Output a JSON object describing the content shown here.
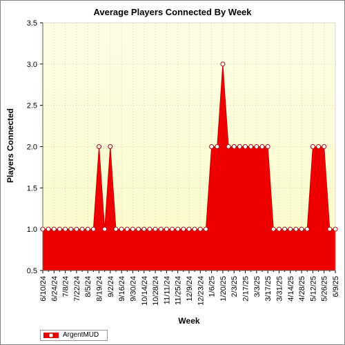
{
  "chart_data": {
    "type": "area",
    "title": "Average Players Connected By Week",
    "xlabel": "Week",
    "ylabel": "Players Connected",
    "ylim": [
      0.5,
      3.5
    ],
    "yticks": [
      "0.5",
      "1.0",
      "1.5",
      "2.0",
      "2.5",
      "3.0",
      "3.5"
    ],
    "grid": true,
    "legend_position": "bottom-left",
    "colors": {
      "area": "#ee0000",
      "line": "#cc0000",
      "marker_fill": "#ffffff",
      "marker_edge": "#aa0000",
      "plot_bg_top": "#fdfde6",
      "plot_bg_bottom": "#fafac8",
      "grid": "#c8c8b4"
    },
    "x": [
      "6/10/24",
      "6/17/24",
      "6/24/24",
      "7/1/24",
      "7/8/24",
      "7/15/24",
      "7/22/24",
      "7/29/24",
      "8/5/24",
      "8/12/24",
      "8/19/24",
      "8/26/24",
      "9/2/24",
      "9/9/24",
      "9/16/24",
      "9/23/24",
      "9/30/24",
      "10/7/24",
      "10/14/24",
      "10/21/24",
      "10/28/24",
      "11/4/24",
      "11/11/24",
      "11/18/24",
      "11/25/24",
      "12/2/24",
      "12/9/24",
      "12/16/24",
      "12/23/24",
      "12/30/24",
      "1/6/25",
      "1/13/25",
      "1/20/25",
      "1/27/25",
      "2/3/25",
      "2/10/25",
      "2/17/25",
      "2/24/25",
      "3/3/25",
      "3/10/25",
      "3/17/25",
      "3/24/25",
      "3/31/25",
      "4/7/25",
      "4/14/25",
      "4/21/25",
      "4/28/25",
      "5/5/25",
      "5/12/25",
      "5/19/25",
      "5/26/25",
      "6/2/25",
      "6/9/25"
    ],
    "xtick_labels": [
      "6/10/24",
      "6/24/24",
      "7/8/24",
      "7/22/24",
      "8/5/24",
      "8/19/24",
      "9/2/24",
      "9/16/24",
      "9/30/24",
      "10/14/24",
      "10/28/24",
      "11/11/24",
      "11/25/24",
      "12/9/24",
      "12/23/24",
      "1/6/25",
      "1/20/25",
      "2/3/25",
      "2/17/25",
      "3/3/25",
      "3/17/25",
      "3/31/25",
      "4/14/25",
      "4/28/25",
      "5/12/25",
      "5/26/25",
      "6/9/25"
    ],
    "series": [
      {
        "name": "ArgentMUD",
        "values": [
          1,
          1,
          1,
          1,
          1,
          1,
          1,
          1,
          1,
          1,
          2,
          1,
          2,
          1,
          1,
          1,
          1,
          1,
          1,
          1,
          1,
          1,
          1,
          1,
          1,
          1,
          1,
          1,
          1,
          1,
          2,
          2,
          3,
          2,
          2,
          2,
          2,
          2,
          2,
          2,
          2,
          1,
          1,
          1,
          1,
          1,
          1,
          1,
          2,
          2,
          2,
          1,
          1
        ]
      }
    ]
  }
}
